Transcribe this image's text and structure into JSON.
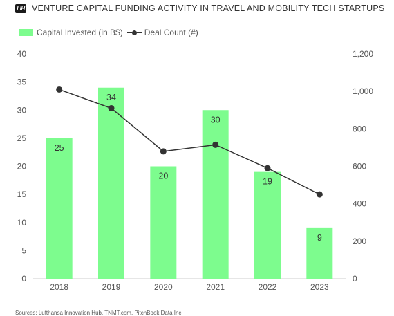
{
  "header": {
    "logo_text": "LIH",
    "title": "VENTURE CAPITAL FUNDING ACTIVITY IN TRAVEL AND MOBILITY TECH STARTUPS"
  },
  "legend": {
    "bar_label": "Capital Invested (in B$)",
    "line_label": "Deal Count (#)"
  },
  "source": "Sources: Lufthansa Innovation Hub, TNMT.com, PitchBook Data Inc.",
  "colors": {
    "bar": "#7dfc8e",
    "line": "#333333",
    "axis": "#555555"
  },
  "chart_data": {
    "type": "bar",
    "title": "VENTURE CAPITAL FUNDING ACTIVITY IN TRAVEL AND MOBILITY TECH STARTUPS",
    "categories": [
      "2018",
      "2019",
      "2020",
      "2021",
      "2022",
      "2023"
    ],
    "series": [
      {
        "name": "Capital Invested (in B$)",
        "type": "bar",
        "axis": "left",
        "values": [
          25,
          34,
          20,
          30,
          19,
          9
        ]
      },
      {
        "name": "Deal Count (#)",
        "type": "line",
        "axis": "right",
        "values": [
          1010,
          910,
          680,
          715,
          590,
          450
        ]
      }
    ],
    "y_left": {
      "min": 0,
      "max": 40,
      "ticks": [
        "0",
        "5",
        "10",
        "15",
        "20",
        "25",
        "30",
        "35",
        "40"
      ]
    },
    "y_right": {
      "min": 0,
      "max": 1200,
      "ticks": [
        "0",
        "200",
        "400",
        "600",
        "800",
        "1,000",
        "1,200"
      ]
    },
    "bar_value_labels": [
      "25",
      "34",
      "20",
      "30",
      "19",
      "9"
    ],
    "grid": false,
    "legend_position": "top-left"
  }
}
